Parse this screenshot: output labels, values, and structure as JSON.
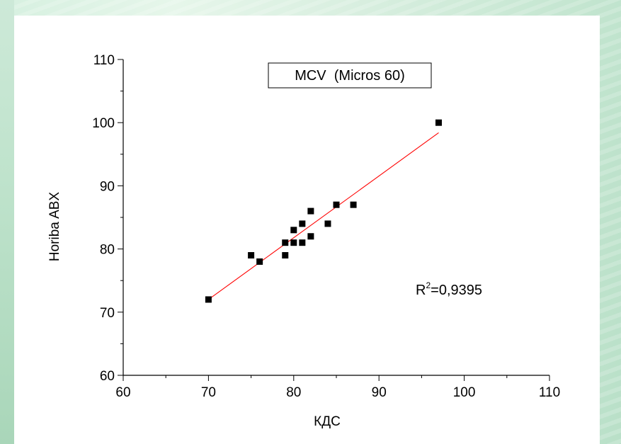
{
  "chart_data": {
    "type": "scatter",
    "title": "MCV  (Micros 60)",
    "xlabel": "КДС",
    "ylabel": "Horiba ABX",
    "xlim": [
      60,
      110
    ],
    "ylim": [
      60,
      110
    ],
    "xticks": [
      "60",
      "70",
      "80",
      "90",
      "100",
      "110"
    ],
    "yticks": [
      "60",
      "70",
      "80",
      "90",
      "100",
      "110"
    ],
    "x_tick_values": [
      60,
      70,
      80,
      90,
      100,
      110
    ],
    "y_tick_values": [
      60,
      70,
      80,
      90,
      100,
      110
    ],
    "minor_step": 5,
    "grid": false,
    "series": [
      {
        "marker": "square",
        "color": "#000000",
        "points": [
          [
            70,
            72
          ],
          [
            75,
            79
          ],
          [
            76,
            78
          ],
          [
            79,
            81
          ],
          [
            79,
            79
          ],
          [
            80,
            83
          ],
          [
            80,
            81
          ],
          [
            81,
            84
          ],
          [
            81,
            81
          ],
          [
            82,
            86
          ],
          [
            82,
            82
          ],
          [
            84,
            84
          ],
          [
            85,
            87
          ],
          [
            87,
            87
          ],
          [
            97,
            100
          ]
        ]
      }
    ],
    "fit_line": {
      "color": "#ff0000",
      "from": [
        70,
        72
      ],
      "to": [
        97,
        98.4
      ]
    },
    "annotation": {
      "prefix": "R",
      "superscript": "2",
      "suffix": "=0,9395"
    }
  }
}
